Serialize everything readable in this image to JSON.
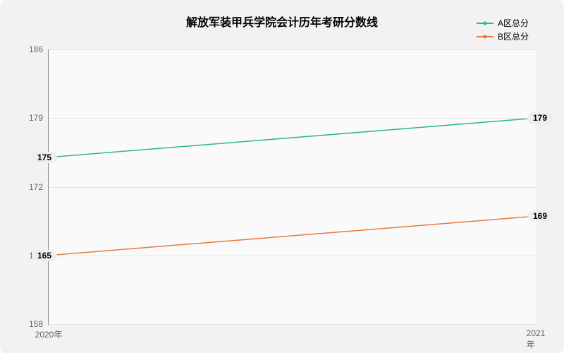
{
  "chart": {
    "type": "line",
    "title": "解放军装甲兵学院会计历年考研分数线",
    "title_fontsize": 16,
    "label_fontsize": 12,
    "background_color": "#fafafa",
    "container_bg": "#f2f2f2",
    "grid_color": "#e5e5e5",
    "axis_color": "#888888",
    "ylim": [
      158,
      186
    ],
    "ytick_step": 7,
    "yticks": [
      158,
      165,
      172,
      179,
      186
    ],
    "xticks": [
      "2020年",
      "2021年"
    ],
    "series": [
      {
        "name": "A区总分",
        "color": "#2fb397",
        "values": [
          175,
          179
        ],
        "line_width": 1.5
      },
      {
        "name": "B区总分",
        "color": "#e67a3c",
        "values": [
          165,
          169
        ],
        "line_width": 1.5
      }
    ],
    "data_label_bg": "#eeeeee"
  }
}
